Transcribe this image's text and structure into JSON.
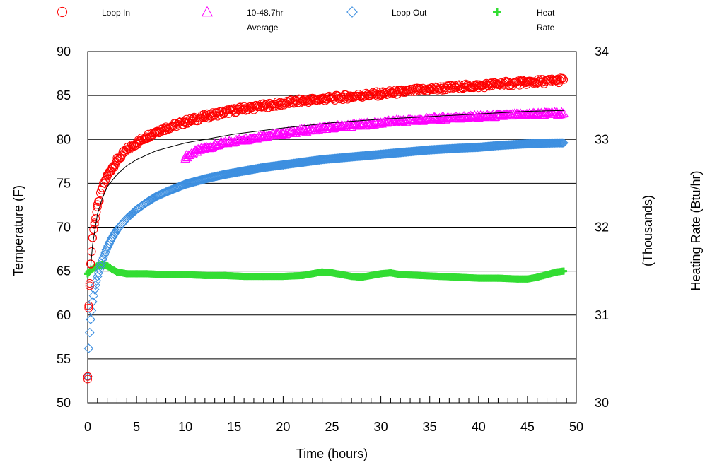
{
  "chart_data": {
    "type": "scatter",
    "title": "",
    "xlabel": "Time (hours)",
    "ylabel": "Temperature (F)",
    "y2label_line1": "(Thousands)",
    "y2label_line2": "Heating Rate (Btu/hr)",
    "xlim": [
      0,
      50
    ],
    "ylim": [
      50,
      90
    ],
    "y2lim": [
      30,
      34
    ],
    "xticks": [
      "0",
      "5",
      "10",
      "15",
      "20",
      "25",
      "30",
      "35",
      "40",
      "45",
      "50"
    ],
    "yticks": [
      "50",
      "55",
      "60",
      "65",
      "70",
      "75",
      "80",
      "85",
      "90"
    ],
    "y2ticks": [
      "30",
      "31",
      "32",
      "33",
      "34"
    ],
    "grid": "horizontal",
    "legend_placement": "top",
    "legend": [
      {
        "label_line1": "Loop In",
        "label_line2": "",
        "marker": "circle",
        "color": "#ff0000"
      },
      {
        "label_line1": "10-48.7hr",
        "label_line2": "Average",
        "marker": "triangle",
        "color": "#ff00ff"
      },
      {
        "label_line1": "Loop Out",
        "label_line2": "",
        "marker": "diamond",
        "color": "#3d8fe0"
      },
      {
        "label_line1": "Heat",
        "label_line2": "Rate",
        "marker": "plus",
        "color": "#33dd33"
      }
    ],
    "series": [
      {
        "name": "Loop In",
        "axis": "left",
        "marker": "circle",
        "color": "#ff0000",
        "x": [
          0,
          0.1,
          0.2,
          0.3,
          0.5,
          0.7,
          1,
          1.5,
          2,
          2.5,
          3,
          4,
          5,
          6,
          7,
          8,
          10,
          12,
          14,
          16,
          18,
          20,
          22,
          24,
          26,
          28,
          30,
          32,
          35,
          38,
          40,
          42,
          45,
          48,
          48.7
        ],
        "y": [
          53,
          60.8,
          63.6,
          65.8,
          68.8,
          70.5,
          72.3,
          74.5,
          75.8,
          76.8,
          77.6,
          78.8,
          79.6,
          80.3,
          80.9,
          81.3,
          82.0,
          82.6,
          83.1,
          83.5,
          83.8,
          84.1,
          84.4,
          84.6,
          84.8,
          85.0,
          85.2,
          85.4,
          85.7,
          86.0,
          86.1,
          86.3,
          86.5,
          86.7,
          86.8
        ]
      },
      {
        "name": "10-48.7hr Average",
        "axis": "left",
        "marker": "triangle",
        "color": "#ff00ff",
        "x": [
          10,
          11,
          12,
          14,
          16,
          18,
          20,
          22,
          24,
          26,
          28,
          30,
          32,
          34,
          36,
          38,
          40,
          42,
          44,
          46,
          48.7
        ],
        "y": [
          78.0,
          78.6,
          79.0,
          79.6,
          80.0,
          80.4,
          80.7,
          81.0,
          81.3,
          81.5,
          81.7,
          81.9,
          82.1,
          82.2,
          82.4,
          82.5,
          82.6,
          82.7,
          82.8,
          82.9,
          83.0
        ]
      },
      {
        "name": "Loop Out",
        "axis": "left",
        "marker": "diamond",
        "color": "#3d8fe0",
        "x": [
          0,
          0.1,
          0.2,
          0.3,
          0.5,
          0.7,
          1,
          1.5,
          2,
          2.5,
          3,
          4,
          5,
          6,
          7,
          8,
          10,
          12,
          14,
          16,
          18,
          20,
          22,
          24,
          26,
          28,
          30,
          32,
          35,
          38,
          40,
          42,
          45,
          48,
          48.7
        ],
        "y": [
          53,
          56.2,
          58.0,
          59.5,
          61.5,
          62.9,
          64.4,
          66.3,
          67.7,
          68.8,
          69.7,
          71.0,
          72.0,
          72.8,
          73.5,
          74.0,
          74.9,
          75.5,
          76.0,
          76.4,
          76.8,
          77.1,
          77.4,
          77.7,
          77.9,
          78.1,
          78.3,
          78.5,
          78.8,
          79.0,
          79.1,
          79.3,
          79.5,
          79.6,
          79.6
        ]
      },
      {
        "name": "Heat Rate",
        "axis": "right",
        "marker": "plus",
        "color": "#33dd33",
        "x": [
          0,
          0.3,
          0.7,
          1,
          1.5,
          2,
          2.5,
          3,
          4,
          5,
          6,
          8,
          10,
          12,
          14,
          16,
          18,
          20,
          22,
          23,
          24,
          25,
          26,
          27,
          28,
          29,
          30,
          31,
          32,
          34,
          36,
          38,
          40,
          42,
          44,
          45,
          46,
          47,
          48,
          48.7
        ],
        "y": [
          31.47,
          31.51,
          31.54,
          31.56,
          31.57,
          31.56,
          31.52,
          31.49,
          31.47,
          31.47,
          31.47,
          31.46,
          31.46,
          31.45,
          31.45,
          31.44,
          31.44,
          31.44,
          31.45,
          31.47,
          31.49,
          31.48,
          31.46,
          31.44,
          31.43,
          31.45,
          31.47,
          31.48,
          31.46,
          31.45,
          31.44,
          31.43,
          31.42,
          31.42,
          31.41,
          31.41,
          31.43,
          31.46,
          31.49,
          31.5
        ]
      }
    ],
    "trendlines": [
      {
        "name": "Loop In fit",
        "x": [
          0.3,
          0.5,
          1,
          1.5,
          2,
          3,
          4,
          5,
          7,
          10,
          15,
          20,
          25,
          30,
          35,
          40,
          45,
          48.7
        ],
        "y": [
          65.5,
          68.0,
          71.5,
          73.3,
          74.6,
          76.0,
          77.0,
          77.7,
          78.7,
          79.6,
          80.6,
          81.3,
          81.9,
          82.3,
          82.6,
          82.9,
          83.2,
          83.3
        ]
      }
    ]
  }
}
